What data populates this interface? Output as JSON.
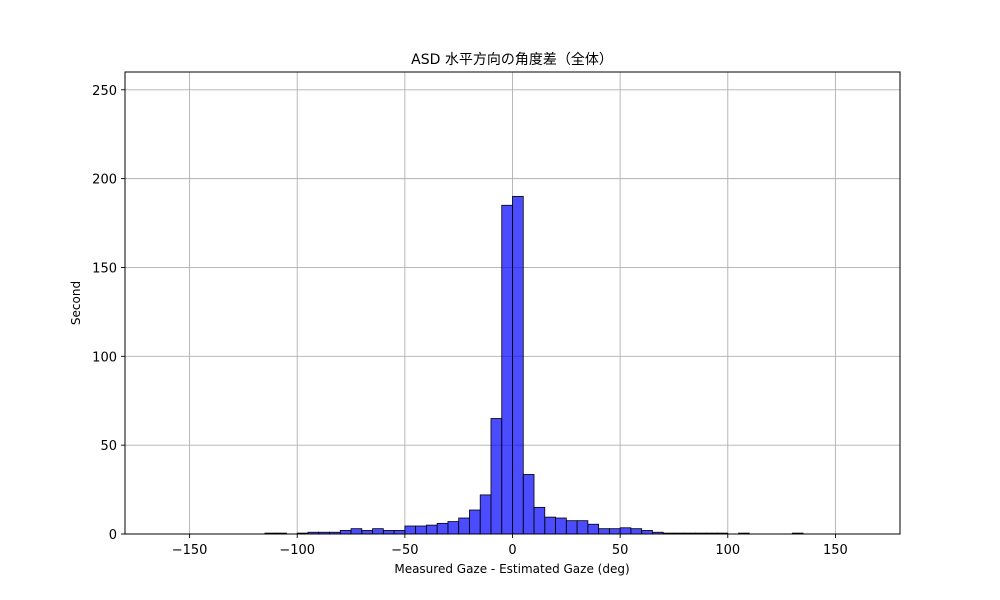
{
  "chart_data": {
    "type": "bar",
    "title": "ASD 水平方向の角度差（全体）",
    "xlabel": "Measured Gaze - Estimated Gaze (deg)",
    "ylabel": "Second",
    "xlim": [
      -180,
      180
    ],
    "ylim": [
      0,
      260
    ],
    "xticks": [
      -150,
      -100,
      -50,
      0,
      50,
      100,
      150
    ],
    "yticks": [
      0,
      50,
      100,
      150,
      200,
      250
    ],
    "xtick_labels": [
      "−150",
      "−100",
      "−50",
      "0",
      "50",
      "100",
      "150"
    ],
    "ytick_labels": [
      "0",
      "50",
      "100",
      "150",
      "200",
      "250"
    ],
    "grid": true,
    "bar_color": "#0000ff",
    "bar_opacity": 0.7,
    "bar_edge_color": "#000000",
    "bin_width": 5,
    "bins": [
      {
        "x0": -115,
        "x1": -110,
        "value": 0.5
      },
      {
        "x0": -110,
        "x1": -105,
        "value": 0.5
      },
      {
        "x0": -100,
        "x1": -95,
        "value": 0.5
      },
      {
        "x0": -95,
        "x1": -90,
        "value": 1
      },
      {
        "x0": -90,
        "x1": -85,
        "value": 1
      },
      {
        "x0": -85,
        "x1": -80,
        "value": 1
      },
      {
        "x0": -80,
        "x1": -75,
        "value": 2
      },
      {
        "x0": -75,
        "x1": -70,
        "value": 3
      },
      {
        "x0": -70,
        "x1": -65,
        "value": 2
      },
      {
        "x0": -65,
        "x1": -60,
        "value": 3
      },
      {
        "x0": -60,
        "x1": -55,
        "value": 2
      },
      {
        "x0": -55,
        "x1": -50,
        "value": 2
      },
      {
        "x0": -50,
        "x1": -45,
        "value": 4.5
      },
      {
        "x0": -45,
        "x1": -40,
        "value": 4.5
      },
      {
        "x0": -40,
        "x1": -35,
        "value": 5
      },
      {
        "x0": -35,
        "x1": -30,
        "value": 6
      },
      {
        "x0": -30,
        "x1": -25,
        "value": 7
      },
      {
        "x0": -25,
        "x1": -20,
        "value": 9
      },
      {
        "x0": -20,
        "x1": -15,
        "value": 13.5
      },
      {
        "x0": -15,
        "x1": -10,
        "value": 22
      },
      {
        "x0": -10,
        "x1": -5,
        "value": 65
      },
      {
        "x0": -5,
        "x1": 0,
        "value": 185
      },
      {
        "x0": 0,
        "x1": 5,
        "value": 190
      },
      {
        "x0": 5,
        "x1": 10,
        "value": 33.5
      },
      {
        "x0": 10,
        "x1": 15,
        "value": 15
      },
      {
        "x0": 15,
        "x1": 20,
        "value": 9.5
      },
      {
        "x0": 20,
        "x1": 25,
        "value": 9
      },
      {
        "x0": 25,
        "x1": 30,
        "value": 7.5
      },
      {
        "x0": 30,
        "x1": 35,
        "value": 7.5
      },
      {
        "x0": 35,
        "x1": 40,
        "value": 5.5
      },
      {
        "x0": 40,
        "x1": 45,
        "value": 3
      },
      {
        "x0": 45,
        "x1": 50,
        "value": 3
      },
      {
        "x0": 50,
        "x1": 55,
        "value": 3.5
      },
      {
        "x0": 55,
        "x1": 60,
        "value": 3
      },
      {
        "x0": 60,
        "x1": 65,
        "value": 2
      },
      {
        "x0": 65,
        "x1": 70,
        "value": 1
      },
      {
        "x0": 70,
        "x1": 75,
        "value": 0.5
      },
      {
        "x0": 75,
        "x1": 80,
        "value": 0.5
      },
      {
        "x0": 80,
        "x1": 85,
        "value": 0.5
      },
      {
        "x0": 85,
        "x1": 90,
        "value": 0.5
      },
      {
        "x0": 90,
        "x1": 95,
        "value": 0.5
      },
      {
        "x0": 95,
        "x1": 100,
        "value": 0.5
      },
      {
        "x0": 105,
        "x1": 110,
        "value": 0.5
      },
      {
        "x0": 130,
        "x1": 135,
        "value": 0.5
      }
    ]
  }
}
